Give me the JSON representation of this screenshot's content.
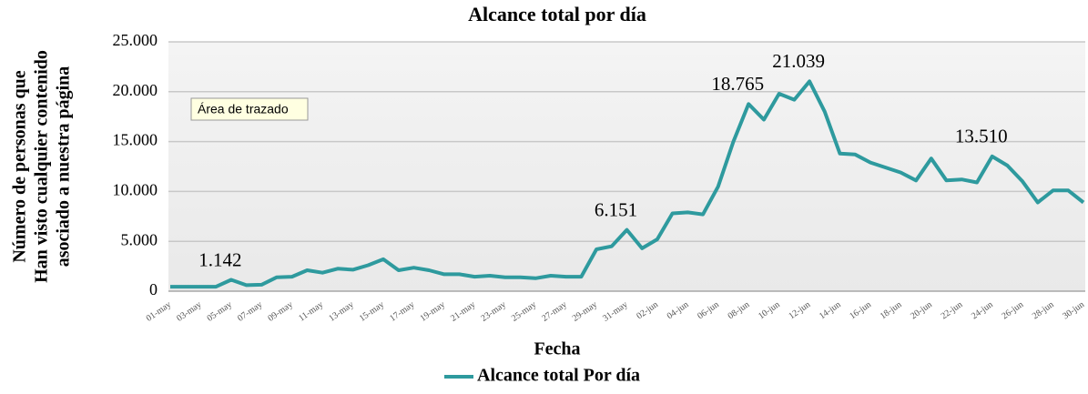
{
  "chart_data": {
    "type": "line",
    "title": "Alcance total por día",
    "x_label": "Fecha",
    "y_label": [
      "Número de personas que",
      "Han visto cualquier contenido",
      "asociado a nuestra página"
    ],
    "tooltip": "Área de trazado",
    "categories": [
      "01-may",
      null,
      "03-may",
      null,
      "05-may",
      null,
      "07-may",
      null,
      "09-may",
      null,
      "11-may",
      null,
      "13-may",
      null,
      "15-may",
      null,
      "17-may",
      null,
      "19-may",
      null,
      "21-may",
      null,
      "23-may",
      null,
      "25-may",
      null,
      "27-may",
      null,
      "29-may",
      null,
      "31-may",
      null,
      "02-jun",
      null,
      "04-jun",
      null,
      "06-jun",
      null,
      "08-jun",
      null,
      "10-jun",
      null,
      "12-jun",
      null,
      "14-jun",
      null,
      "16-jun",
      null,
      "18-jun",
      null,
      "20-jun",
      null,
      "22-jun",
      null,
      "24-jun",
      null,
      "26-jun",
      null,
      "28-jun",
      null,
      "30-jun"
    ],
    "series": [
      {
        "name": "Alcance total Por día",
        "color": "#2e9a9e",
        "values": [
          450,
          450,
          450,
          450,
          1142,
          600,
          650,
          1400,
          1450,
          2100,
          1850,
          2250,
          2150,
          2600,
          3200,
          2100,
          2350,
          2100,
          1700,
          1700,
          1450,
          1550,
          1400,
          1400,
          1300,
          1550,
          1450,
          1450,
          4200,
          4500,
          6151,
          4300,
          5200,
          7800,
          7900,
          7700,
          10500,
          15000,
          18765,
          17200,
          19800,
          19200,
          21039,
          18000,
          13800,
          13700,
          12900,
          12400,
          11900,
          11100,
          13300,
          11100,
          11200,
          10900,
          13510,
          12600,
          11000,
          8900,
          10100,
          10100,
          8900
        ],
        "value_labels": [
          null,
          null,
          null,
          null,
          "1.142",
          null,
          null,
          null,
          null,
          null,
          null,
          null,
          null,
          null,
          null,
          null,
          null,
          null,
          null,
          null,
          null,
          null,
          null,
          null,
          null,
          null,
          null,
          null,
          null,
          null,
          "6.151",
          null,
          null,
          null,
          null,
          null,
          null,
          null,
          "18.765",
          null,
          null,
          null,
          "21.039",
          null,
          null,
          null,
          null,
          null,
          null,
          null,
          null,
          null,
          null,
          null,
          "13.510",
          null,
          null,
          null,
          null,
          null,
          null
        ]
      }
    ],
    "ylim": [
      0,
      25000
    ],
    "yticks": [
      {
        "value": 0,
        "label": "0"
      },
      {
        "value": 5000,
        "label": "5.000"
      },
      {
        "value": 10000,
        "label": "10.000"
      },
      {
        "value": 15000,
        "label": "15.000"
      },
      {
        "value": 20000,
        "label": "20.000"
      },
      {
        "value": 25000,
        "label": "25.000"
      }
    ],
    "grid": true
  }
}
